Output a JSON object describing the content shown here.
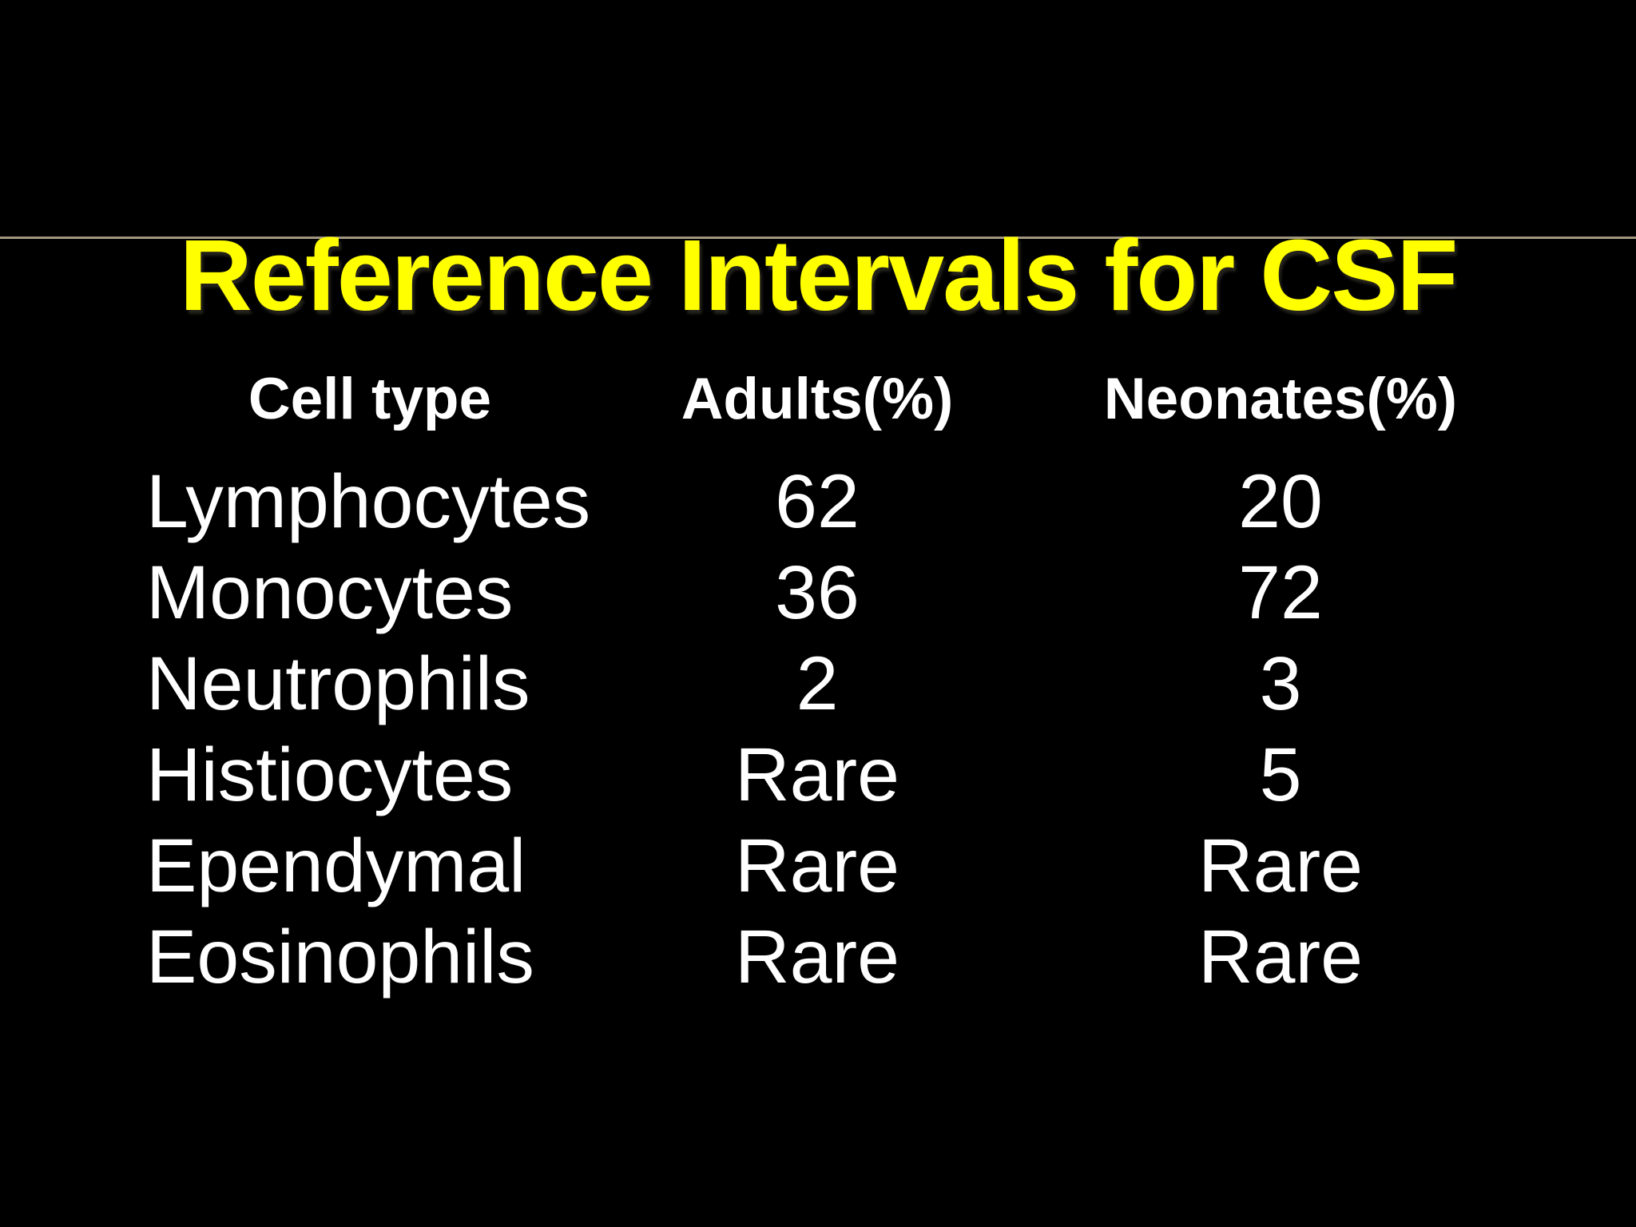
{
  "slide": {
    "title": "Reference Intervals for CSF",
    "colors": {
      "background": "#000000",
      "title": "#ffff00",
      "divider": "#a89e84",
      "table_text": "#ffffff"
    }
  },
  "table": {
    "headers": [
      "Cell type",
      "Adults(%)",
      "Neonates(%)"
    ],
    "rows": [
      {
        "cell_type": "Lymphocytes",
        "adults": "62",
        "neonates": "20"
      },
      {
        "cell_type": "Monocytes",
        "adults": "36",
        "neonates": "72"
      },
      {
        "cell_type": "Neutrophils",
        "adults": "2",
        "neonates": "3"
      },
      {
        "cell_type": "Histiocytes",
        "adults": "Rare",
        "neonates": "5"
      },
      {
        "cell_type": "Ependymal",
        "adults": "Rare",
        "neonates": "Rare"
      },
      {
        "cell_type": "Eosinophils",
        "adults": "Rare",
        "neonates": "Rare"
      }
    ]
  }
}
